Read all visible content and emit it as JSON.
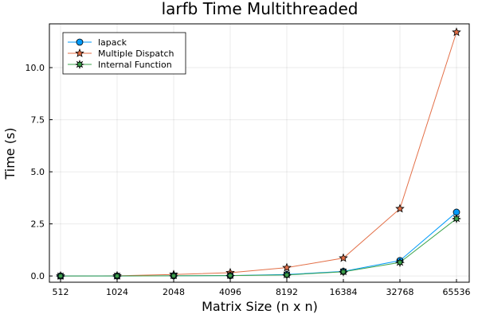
{
  "chart_data": {
    "type": "line",
    "title": "larfb Time Multithreaded",
    "xlabel": "Matrix Size (n x n)",
    "ylabel": "Time (s)",
    "x_scale": "log2",
    "categories": [
      "512",
      "1024",
      "2048",
      "4096",
      "8192",
      "16384",
      "32768",
      "65536"
    ],
    "x": [
      512,
      1024,
      2048,
      4096,
      8192,
      16384,
      32768,
      65536
    ],
    "y_ticks": [
      "0.0",
      "2.5",
      "5.0",
      "7.5",
      "10.0"
    ],
    "ylim": [
      -0.3,
      12.1
    ],
    "grid": true,
    "legend_position": "top-left",
    "series": [
      {
        "name": "lapack",
        "color": "#009AFA",
        "marker": "circle",
        "values": [
          0.0,
          0.0,
          0.01,
          0.02,
          0.07,
          0.22,
          0.74,
          3.06
        ]
      },
      {
        "name": "Multiple Dispatch",
        "color": "#E36F47",
        "marker": "star5",
        "values": [
          0.0,
          0.01,
          0.07,
          0.16,
          0.4,
          0.86,
          3.23,
          11.7
        ]
      },
      {
        "name": "Internal Function",
        "color": "#3EA44E",
        "marker": "star8",
        "values": [
          0.0,
          0.0,
          0.01,
          0.02,
          0.05,
          0.2,
          0.65,
          2.75
        ]
      }
    ]
  }
}
